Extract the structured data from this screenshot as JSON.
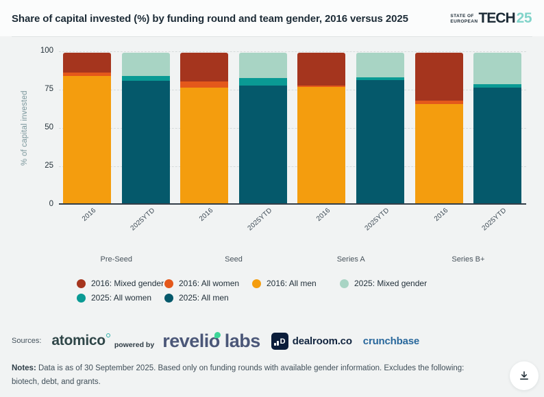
{
  "header": {
    "title": "Share of capital invested (%) by funding round and team gender, 2016 versus 2025",
    "logo": {
      "line1": "STATE OF",
      "line2": "EUROPEAN",
      "tech": "TECH",
      "year": "25"
    }
  },
  "chart_data": {
    "type": "bar",
    "stacked": true,
    "title": "Share of capital invested (%) by funding round and team gender, 2016 versus 2025",
    "xlabel": "",
    "ylabel": "% of capital invested",
    "ylim": [
      0,
      100
    ],
    "yticks": [
      0,
      25,
      50,
      75,
      100
    ],
    "grid": "horizontal-dashed",
    "groups": [
      "Pre-Seed",
      "Seed",
      "Series A",
      "Series B+"
    ],
    "stack_order": [
      "all_men",
      "all_women",
      "mixed_gender"
    ],
    "colors": {
      "2016": {
        "all_men": "#F49D0E",
        "all_women": "#E4581B",
        "mixed_gender": "#A5351E"
      },
      "2025": {
        "all_men": "#05596B",
        "all_women": "#0A9A94",
        "mixed_gender": "#A8D4C4"
      }
    },
    "bars": [
      {
        "group": "Pre-Seed",
        "label": "2016",
        "year": "2016",
        "values": {
          "all_men": 84.5,
          "all_women": 2.5,
          "mixed_gender": 13
        }
      },
      {
        "group": "Pre-Seed",
        "label": "2025YTD",
        "year": "2025",
        "values": {
          "all_men": 81.5,
          "all_women": 3,
          "mixed_gender": 15.5
        }
      },
      {
        "group": "Seed",
        "label": "2016",
        "year": "2016",
        "values": {
          "all_men": 77,
          "all_women": 4,
          "mixed_gender": 19
        }
      },
      {
        "group": "Seed",
        "label": "2025YTD",
        "year": "2025",
        "values": {
          "all_men": 78,
          "all_women": 5,
          "mixed_gender": 17
        }
      },
      {
        "group": "Series A",
        "label": "2016",
        "year": "2016",
        "values": {
          "all_men": 77.5,
          "all_women": 0.5,
          "mixed_gender": 22
        }
      },
      {
        "group": "Series A",
        "label": "2025YTD",
        "year": "2025",
        "values": {
          "all_men": 82,
          "all_women": 1.5,
          "mixed_gender": 16.5
        }
      },
      {
        "group": "Series B+",
        "label": "2016",
        "year": "2016",
        "values": {
          "all_men": 66,
          "all_women": 2,
          "mixed_gender": 32
        }
      },
      {
        "group": "Series B+",
        "label": "2025YTD",
        "year": "2025",
        "values": {
          "all_men": 77,
          "all_women": 2,
          "mixed_gender": 21
        }
      }
    ],
    "legend_position": "bottom"
  },
  "legend": {
    "items": [
      {
        "label": "2016: Mixed gender",
        "color": "#A5351E"
      },
      {
        "label": "2016: All women",
        "color": "#E4581B"
      },
      {
        "label": "2016: All men",
        "color": "#F49D0E"
      },
      {
        "label": "2025: Mixed gender",
        "color": "#A8D4C4"
      },
      {
        "label": "2025: All women",
        "color": "#0A9A94"
      },
      {
        "label": "2025: All men",
        "color": "#05596B"
      }
    ]
  },
  "sources": {
    "label": "Sources:",
    "atomico": "atomico",
    "powered_by": "powered by",
    "revelio_part1": "reveli",
    "revelio_o": "o",
    "revelio_part2": " labs",
    "dealroom_d": "D",
    "dealroom": "dealroom.co",
    "crunchbase": "crunchbase"
  },
  "notes": {
    "label": "Notes:",
    "text": "Data is as of 30 September 2025. Based only on funding rounds with available gender information. Excludes the following: biotech, debt, and grants."
  },
  "colors": {
    "page_bg": "#F1F3F3",
    "header_bg": "#FBFCFC",
    "title_text": "#1C2B36",
    "axis_text": "#243139",
    "y_axis_title": "#7A969B",
    "gridline": "#D5DADA",
    "baseline": "#333E48",
    "logo_accent": "#82D4CA",
    "crunchbase_blue": "#29689C",
    "revelio_navy": "#4B5778",
    "revelio_green": "#3ED598",
    "dealroom_navy": "#0B1D3A",
    "atomico_teal": "#2FB0A8"
  }
}
